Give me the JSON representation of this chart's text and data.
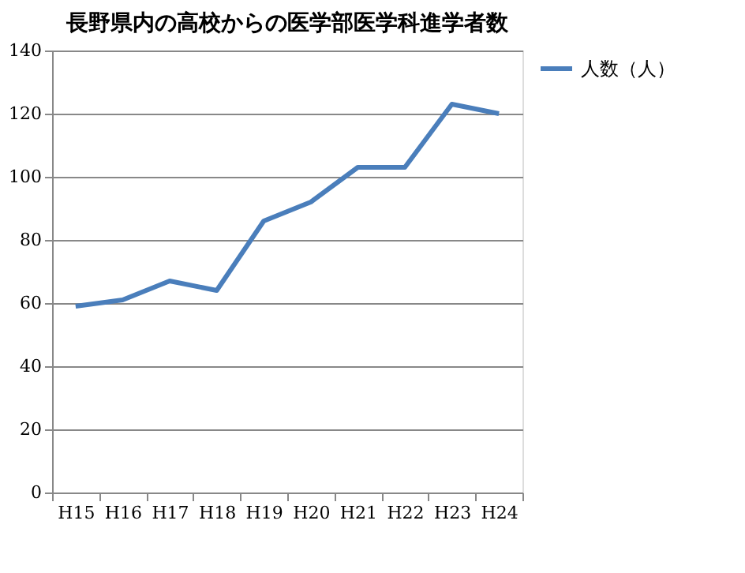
{
  "chart_data": {
    "type": "line",
    "title": "長野県内の高校からの医学部医学科進学者数",
    "categories": [
      "H15",
      "H16",
      "H17",
      "H18",
      "H19",
      "H20",
      "H21",
      "H22",
      "H23",
      "H24"
    ],
    "series": [
      {
        "name": "人数（人）",
        "color": "#4a7ebb",
        "values": [
          59,
          61,
          67,
          64,
          86,
          92,
          103,
          103,
          123,
          120
        ]
      }
    ],
    "ylim": [
      0,
      140
    ],
    "yticks": [
      0,
      20,
      40,
      60,
      80,
      100,
      120,
      140
    ],
    "grid": "y",
    "legend": "right",
    "marker": "none",
    "line_style": "solid"
  }
}
